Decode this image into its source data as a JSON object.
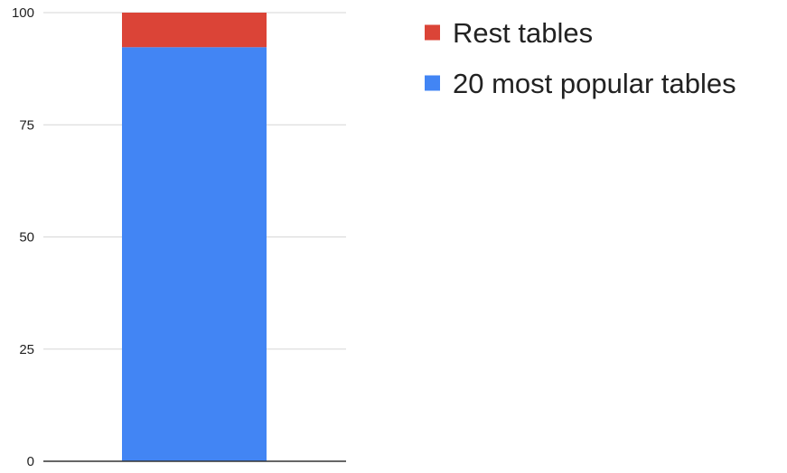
{
  "chart_data": {
    "type": "bar",
    "stacked": true,
    "categories": [
      ""
    ],
    "series": [
      {
        "name": "20 most popular tables",
        "values": [
          92.3
        ],
        "color": "#4285f4"
      },
      {
        "name": "Rest tables",
        "values": [
          7.7
        ],
        "color": "#db4437"
      }
    ],
    "title": "",
    "xlabel": "",
    "ylabel": "",
    "ylim": [
      0,
      100
    ],
    "yticks": [
      "0",
      "25",
      "50",
      "75",
      "100"
    ],
    "ytick_values": [
      0,
      25,
      50,
      75,
      100
    ],
    "grid": true,
    "legend": {
      "position": "top-right",
      "order": [
        "Rest tables",
        "20 most popular tables"
      ]
    }
  }
}
